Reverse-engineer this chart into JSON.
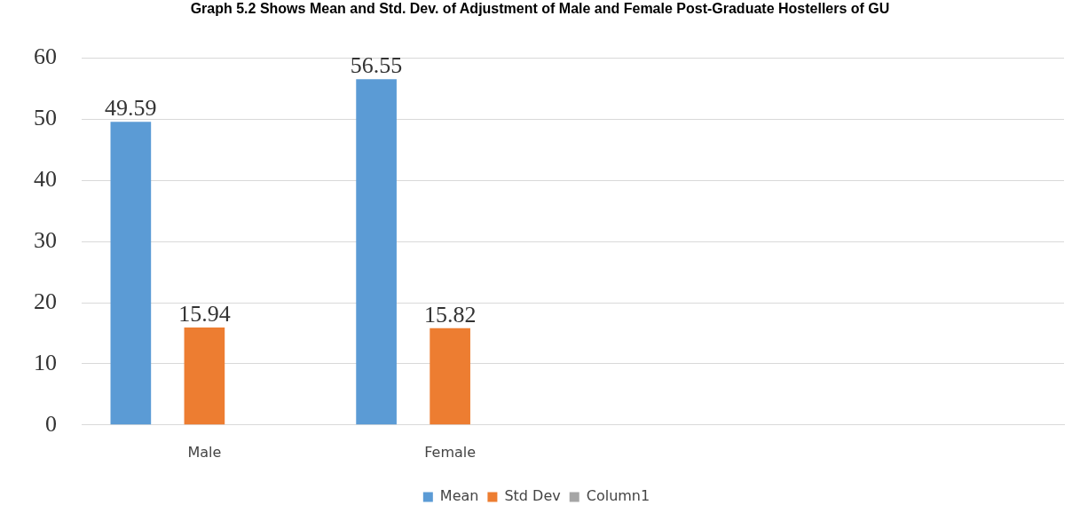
{
  "chart_data": {
    "type": "bar",
    "title": "Graph 5.2 Shows Mean and Std. Dev. of Adjustment of Male and Female Post-Graduate Hostellers of GU",
    "categories": [
      "Male",
      "Female",
      null,
      null
    ],
    "series": [
      {
        "name": "Mean",
        "color": "#5b9bd5",
        "values": [
          49.59,
          56.55,
          null,
          null
        ]
      },
      {
        "name": "Std Dev",
        "color": "#ed7d31",
        "values": [
          15.94,
          15.82,
          null,
          null
        ]
      },
      {
        "name": "Column1",
        "color": "#a5a5a5",
        "values": [
          null,
          null,
          null,
          null
        ]
      }
    ],
    "ylim": [
      0,
      60
    ],
    "yticks": [
      0,
      10,
      20,
      30,
      40,
      50,
      60
    ],
    "grid": "y",
    "legend": "bottom",
    "data_labels": true
  }
}
